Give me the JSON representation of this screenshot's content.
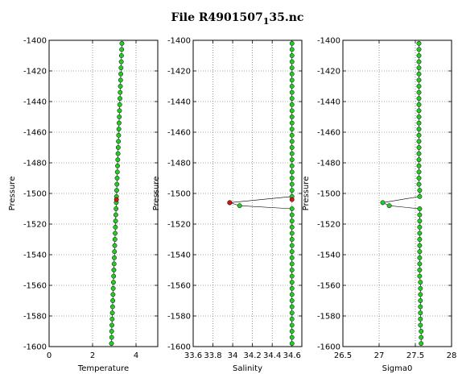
{
  "figure": {
    "title_main": "File R4901507",
    "title_sub": "1",
    "title_end": "35.nc"
  },
  "colors": {
    "good_point": "#22cc22",
    "bad_point": "#dd1111",
    "line": "#000000",
    "grid": "#555555"
  },
  "chart_data": [
    {
      "type": "line",
      "xlabel": "Temperature",
      "ylabel": "Pressure",
      "xlim": [
        0,
        5
      ],
      "ylim": [
        -1600,
        -1400
      ],
      "xticks": [
        "0",
        "2",
        "4"
      ],
      "yticks": [
        "-1400",
        "-1420",
        "-1440",
        "-1460",
        "-1480",
        "-1500",
        "-1520",
        "-1540",
        "-1560",
        "-1580",
        "-1600"
      ],
      "grid": true,
      "series": [
        {
          "points": [
            [
              3.35,
              -1402
            ],
            [
              3.34,
              -1406
            ],
            [
              3.33,
              -1410
            ],
            [
              3.32,
              -1414
            ],
            [
              3.31,
              -1418
            ],
            [
              3.3,
              -1422
            ],
            [
              3.29,
              -1426
            ],
            [
              3.28,
              -1430
            ],
            [
              3.27,
              -1434
            ],
            [
              3.26,
              -1438
            ],
            [
              3.25,
              -1442
            ],
            [
              3.24,
              -1446
            ],
            [
              3.23,
              -1450
            ],
            [
              3.22,
              -1454
            ],
            [
              3.21,
              -1458
            ],
            [
              3.2,
              -1462
            ],
            [
              3.19,
              -1466
            ],
            [
              3.18,
              -1470
            ],
            [
              3.17,
              -1474
            ],
            [
              3.16,
              -1478
            ],
            [
              3.15,
              -1482
            ],
            [
              3.14,
              -1486
            ],
            [
              3.13,
              -1490
            ],
            [
              3.12,
              -1494
            ],
            [
              3.11,
              -1498
            ],
            [
              3.1,
              -1502
            ],
            [
              3.09,
              -1506
            ],
            [
              3.08,
              -1510
            ],
            [
              3.07,
              -1514
            ],
            [
              3.06,
              -1518
            ],
            [
              3.05,
              -1522
            ],
            [
              3.04,
              -1526
            ],
            [
              3.03,
              -1530
            ],
            [
              3.02,
              -1534
            ],
            [
              3.01,
              -1538
            ],
            [
              3.0,
              -1542
            ],
            [
              2.99,
              -1546
            ],
            [
              2.98,
              -1550
            ],
            [
              2.97,
              -1554
            ],
            [
              2.96,
              -1558
            ],
            [
              2.95,
              -1562
            ],
            [
              2.94,
              -1566
            ],
            [
              2.93,
              -1570
            ],
            [
              2.92,
              -1574
            ],
            [
              2.91,
              -1578
            ],
            [
              2.9,
              -1582
            ],
            [
              2.89,
              -1586
            ],
            [
              2.88,
              -1590
            ],
            [
              2.88,
              -1594
            ],
            [
              2.87,
              -1598
            ]
          ],
          "flagged": [
            [
              3.1,
              -1504
            ]
          ]
        }
      ]
    },
    {
      "type": "line",
      "xlabel": "Salinity",
      "ylabel": "Pressure",
      "xlim": [
        33.6,
        34.7
      ],
      "ylim": [
        -1600,
        -1400
      ],
      "xticks": [
        "33.6",
        "33.8",
        "34",
        "34.2",
        "34.4",
        "34.6"
      ],
      "yticks": [
        "-1400",
        "-1420",
        "-1440",
        "-1460",
        "-1480",
        "-1500",
        "-1520",
        "-1540",
        "-1560",
        "-1580",
        "-1600"
      ],
      "grid": true,
      "series": [
        {
          "points": [
            [
              34.6,
              -1402
            ],
            [
              34.6,
              -1406
            ],
            [
              34.6,
              -1410
            ],
            [
              34.6,
              -1414
            ],
            [
              34.6,
              -1418
            ],
            [
              34.6,
              -1422
            ],
            [
              34.6,
              -1426
            ],
            [
              34.6,
              -1430
            ],
            [
              34.6,
              -1434
            ],
            [
              34.6,
              -1438
            ],
            [
              34.6,
              -1442
            ],
            [
              34.6,
              -1446
            ],
            [
              34.6,
              -1450
            ],
            [
              34.6,
              -1454
            ],
            [
              34.6,
              -1458
            ],
            [
              34.6,
              -1462
            ],
            [
              34.6,
              -1466
            ],
            [
              34.6,
              -1470
            ],
            [
              34.6,
              -1474
            ],
            [
              34.6,
              -1478
            ],
            [
              34.6,
              -1482
            ],
            [
              34.6,
              -1486
            ],
            [
              34.6,
              -1490
            ],
            [
              34.6,
              -1494
            ],
            [
              34.6,
              -1498
            ],
            [
              34.6,
              -1502
            ],
            [
              33.97,
              -1506
            ],
            [
              34.07,
              -1508
            ],
            [
              34.6,
              -1510
            ],
            [
              34.6,
              -1514
            ],
            [
              34.6,
              -1518
            ],
            [
              34.6,
              -1522
            ],
            [
              34.6,
              -1526
            ],
            [
              34.6,
              -1530
            ],
            [
              34.6,
              -1534
            ],
            [
              34.6,
              -1538
            ],
            [
              34.6,
              -1542
            ],
            [
              34.6,
              -1546
            ],
            [
              34.6,
              -1550
            ],
            [
              34.6,
              -1554
            ],
            [
              34.6,
              -1558
            ],
            [
              34.6,
              -1562
            ],
            [
              34.6,
              -1566
            ],
            [
              34.6,
              -1570
            ],
            [
              34.6,
              -1574
            ],
            [
              34.6,
              -1578
            ],
            [
              34.6,
              -1582
            ],
            [
              34.6,
              -1586
            ],
            [
              34.6,
              -1590
            ],
            [
              34.6,
              -1594
            ],
            [
              34.6,
              -1598
            ]
          ],
          "flagged": [
            [
              34.6,
              -1504
            ],
            [
              33.97,
              -1506
            ]
          ]
        }
      ]
    },
    {
      "type": "line",
      "xlabel": "Sigma0",
      "ylabel": "Pressure",
      "xlim": [
        26.5,
        28
      ],
      "ylim": [
        -1600,
        -1400
      ],
      "xticks": [
        "26.5",
        "27",
        "27.5",
        "28"
      ],
      "yticks": [
        "-1400",
        "-1420",
        "-1440",
        "-1460",
        "-1480",
        "-1500",
        "-1520",
        "-1540",
        "-1560",
        "-1580",
        "-1600"
      ],
      "grid": true,
      "series": [
        {
          "points": [
            [
              27.55,
              -1402
            ],
            [
              27.55,
              -1406
            ],
            [
              27.55,
              -1410
            ],
            [
              27.55,
              -1414
            ],
            [
              27.55,
              -1418
            ],
            [
              27.55,
              -1422
            ],
            [
              27.55,
              -1426
            ],
            [
              27.55,
              -1430
            ],
            [
              27.55,
              -1434
            ],
            [
              27.55,
              -1438
            ],
            [
              27.55,
              -1442
            ],
            [
              27.55,
              -1446
            ],
            [
              27.55,
              -1450
            ],
            [
              27.55,
              -1454
            ],
            [
              27.55,
              -1458
            ],
            [
              27.55,
              -1462
            ],
            [
              27.55,
              -1466
            ],
            [
              27.55,
              -1470
            ],
            [
              27.55,
              -1474
            ],
            [
              27.55,
              -1478
            ],
            [
              27.55,
              -1482
            ],
            [
              27.55,
              -1486
            ],
            [
              27.55,
              -1490
            ],
            [
              27.55,
              -1494
            ],
            [
              27.56,
              -1498
            ],
            [
              27.56,
              -1502
            ],
            [
              27.05,
              -1506
            ],
            [
              27.14,
              -1508
            ],
            [
              27.56,
              -1510
            ],
            [
              27.56,
              -1514
            ],
            [
              27.56,
              -1518
            ],
            [
              27.56,
              -1522
            ],
            [
              27.56,
              -1526
            ],
            [
              27.56,
              -1530
            ],
            [
              27.56,
              -1534
            ],
            [
              27.56,
              -1538
            ],
            [
              27.56,
              -1542
            ],
            [
              27.56,
              -1546
            ],
            [
              27.56,
              -1550
            ],
            [
              27.56,
              -1554
            ],
            [
              27.57,
              -1558
            ],
            [
              27.57,
              -1562
            ],
            [
              27.57,
              -1566
            ],
            [
              27.57,
              -1570
            ],
            [
              27.57,
              -1574
            ],
            [
              27.57,
              -1578
            ],
            [
              27.57,
              -1582
            ],
            [
              27.57,
              -1586
            ],
            [
              27.58,
              -1590
            ],
            [
              27.58,
              -1594
            ],
            [
              27.58,
              -1598
            ]
          ],
          "flagged": []
        }
      ]
    }
  ]
}
